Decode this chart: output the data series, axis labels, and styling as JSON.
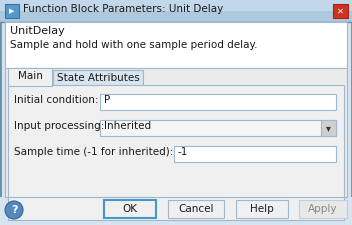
{
  "title": "Function Block Parameters: Unit Delay",
  "block_name": "UnitDelay",
  "description": "Sample and hold with one sample period delay.",
  "tab1": "Main",
  "tab2": "State Attributes",
  "field1_label": "Initial condition:",
  "field1_value": "P",
  "field2_label": "Input processing:",
  "field2_value": "Inherited",
  "field3_label": "Sample time (-1 for inherited):",
  "field3_value": "-1",
  "btn_ok": "OK",
  "btn_cancel": "Cancel",
  "btn_help": "Help",
  "btn_apply": "Apply",
  "bg_dialog": "#d6e4f0",
  "bg_titlebar_top": "#aec8de",
  "bg_titlebar_bot": "#c2d8ea",
  "bg_white": "#ffffff",
  "bg_light_gray": "#f0f0f0",
  "bg_content_gray": "#ebebeb",
  "bg_info": "#ffffff",
  "border_dark": "#6a8fa8",
  "border_med": "#a0b8cc",
  "border_light": "#c0cfe0",
  "tab_active_bg": "#f0f0f0",
  "tab_inactive_bg": "#d8e4ee",
  "title_text_color": "#1a1a1a",
  "text_color": "#1a1a1a",
  "apply_text_color": "#888888",
  "close_btn_bg": "#cc3322",
  "close_btn_border": "#aa2211",
  "icon_bg": "#5599cc",
  "help_icon_bg": "#5588bb",
  "dropdown_arrow_bg": "#d0d0d0",
  "ok_border": "#4499cc"
}
